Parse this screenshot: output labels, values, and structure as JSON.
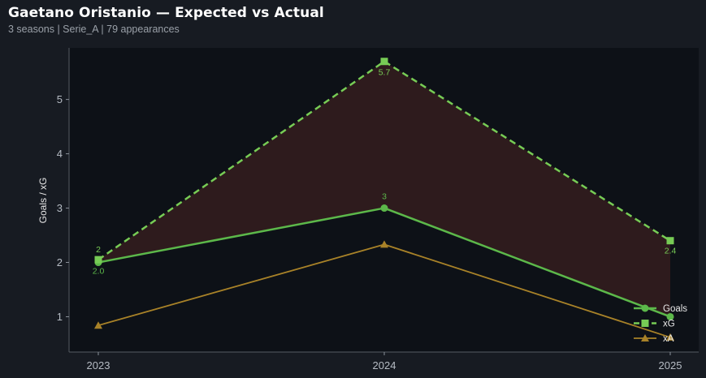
{
  "header": {
    "title": "Gaetano Oristanio — Expected vs Actual",
    "subtitle": "3 seasons | Serie_A | 79 appearances"
  },
  "chart_data": {
    "type": "line",
    "x": [
      "2023",
      "2024",
      "2025"
    ],
    "ylabel": "Goals / xG",
    "yticks": [
      1,
      2,
      3,
      4,
      5
    ],
    "ylim": [
      0.35,
      5.95
    ],
    "grid": false,
    "legend_position": "bottom-right",
    "series": [
      {
        "name": "Goals",
        "values": [
          2,
          3,
          1
        ],
        "labels": [
          "2.0",
          "3",
          ""
        ],
        "color": "#5cb84a",
        "marker": "circle",
        "style": "solid"
      },
      {
        "name": "xG",
        "values": [
          2.05,
          5.7,
          2.4
        ],
        "labels": [
          "2",
          "5.7",
          "2.4"
        ],
        "color": "#77cc55",
        "marker": "square",
        "style": "dashed"
      },
      {
        "name": "xA",
        "values": [
          0.84,
          2.33,
          0.62
        ],
        "labels": [],
        "color": "#a88228",
        "marker": "triangle",
        "style": "solid"
      }
    ],
    "fill_between": {
      "series": [
        "Goals",
        "xG"
      ],
      "color": "#3a1f20"
    },
    "colors": {
      "background": "#171b22",
      "plot_background": "#0d1117",
      "axis": "#555b63"
    }
  }
}
